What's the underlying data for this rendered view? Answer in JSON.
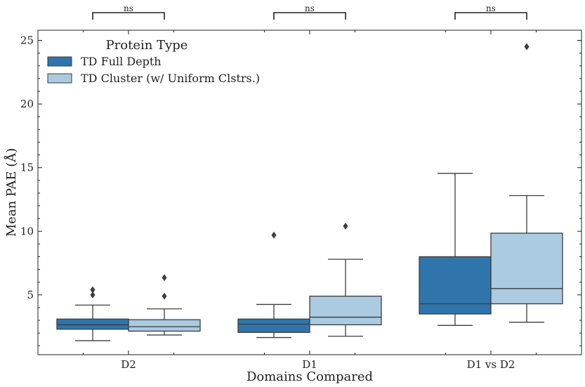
{
  "chart_data": {
    "type": "box",
    "xlabel": "Domains Compared",
    "ylabel": "Mean PAE (Å)",
    "categories": [
      "D2",
      "D1",
      "D1 vs D2"
    ],
    "ylim": [
      0.3,
      25.8
    ],
    "yticks": [
      5,
      10,
      15,
      20,
      25
    ],
    "legend": {
      "title": "Protein Type",
      "placement": "top-left",
      "entries": [
        "TD Full Depth",
        "TD Cluster (w/ Uniform Clstrs.)"
      ]
    },
    "significance": [
      "ns",
      "ns",
      "ns"
    ],
    "series": [
      {
        "name": "TD Full Depth",
        "color": "#2f75ab",
        "boxes": [
          {
            "whisker_low": 1.4,
            "q1": 2.3,
            "median": 2.65,
            "q3": 3.1,
            "whisker_high": 4.2,
            "outliers": [
              5.0,
              5.4
            ]
          },
          {
            "whisker_low": 1.65,
            "q1": 2.05,
            "median": 2.7,
            "q3": 3.1,
            "whisker_high": 4.25,
            "outliers": [
              9.7
            ]
          },
          {
            "whisker_low": 2.6,
            "q1": 3.5,
            "median": 4.3,
            "q3": 8.0,
            "whisker_high": 14.55,
            "outliers": []
          }
        ]
      },
      {
        "name": "TD Cluster (w/ Uniform Clstrs.)",
        "color": "#aacbe0",
        "boxes": [
          {
            "whisker_low": 1.85,
            "q1": 2.15,
            "median": 2.5,
            "q3": 3.05,
            "whisker_high": 3.9,
            "outliers": [
              4.9,
              6.35
            ]
          },
          {
            "whisker_low": 1.75,
            "q1": 2.65,
            "median": 3.25,
            "q3": 4.9,
            "whisker_high": 7.8,
            "outliers": [
              10.4
            ]
          },
          {
            "whisker_low": 2.85,
            "q1": 4.3,
            "median": 5.5,
            "q3": 9.85,
            "whisker_high": 12.8,
            "outliers": [
              24.5
            ]
          }
        ]
      }
    ]
  }
}
